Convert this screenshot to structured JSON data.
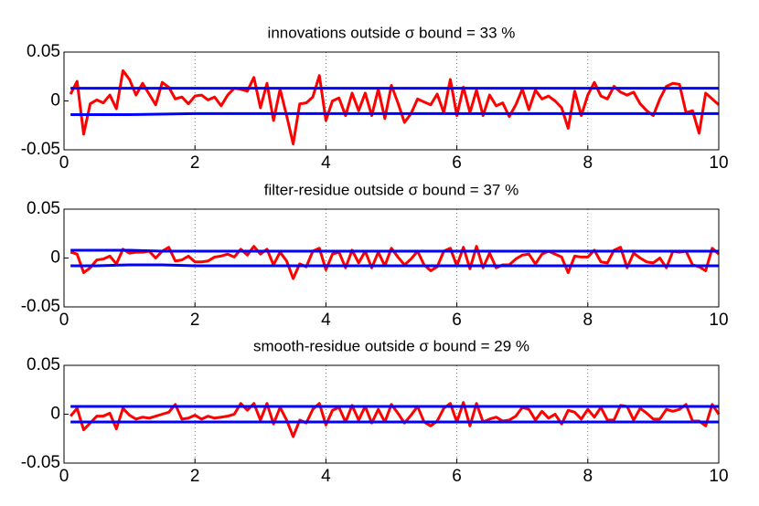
{
  "chart_data": [
    {
      "type": "line",
      "title": "innovations outside σ bound = 33 %",
      "x": [
        0.1,
        0.2,
        0.3,
        0.4,
        0.5,
        0.6,
        0.7,
        0.8,
        0.9,
        1.0,
        1.1,
        1.2,
        1.3,
        1.4,
        1.5,
        1.6,
        1.7,
        1.8,
        1.9,
        2.0,
        2.1,
        2.2,
        2.3,
        2.4,
        2.5,
        2.6,
        2.7,
        2.8,
        2.9,
        3.0,
        3.1,
        3.2,
        3.3,
        3.4,
        3.5,
        3.6,
        3.7,
        3.8,
        3.9,
        4.0,
        4.1,
        4.2,
        4.3,
        4.4,
        4.5,
        4.6,
        4.7,
        4.8,
        4.9,
        5.0,
        5.1,
        5.2,
        5.3,
        5.4,
        5.5,
        5.6,
        5.7,
        5.8,
        5.9,
        6.0,
        6.1,
        6.2,
        6.3,
        6.4,
        6.5,
        6.6,
        6.7,
        6.8,
        6.9,
        7.0,
        7.1,
        7.2,
        7.3,
        7.4,
        7.5,
        7.6,
        7.7,
        7.8,
        7.9,
        8.0,
        8.1,
        8.2,
        8.3,
        8.4,
        8.5,
        8.6,
        8.7,
        8.8,
        8.9,
        9.0,
        9.1,
        9.2,
        9.3,
        9.4,
        9.5,
        9.6,
        9.7,
        9.8,
        9.9,
        10.0
      ],
      "series": [
        {
          "color": "#ff0000",
          "values": [
            0.007,
            0.02,
            -0.034,
            -0.003,
            0.001,
            -0.002,
            0.006,
            -0.008,
            0.031,
            0.022,
            0.006,
            0.018,
            0.007,
            -0.004,
            0.019,
            0.014,
            0.002,
            0.004,
            -0.003,
            0.005,
            0.006,
            0.001,
            0.004,
            -0.005,
            0.006,
            0.013,
            0.012,
            0.01,
            0.024,
            -0.007,
            0.018,
            -0.02,
            0.012,
            -0.015,
            -0.044,
            -0.003,
            -0.002,
            0.004,
            0.026,
            -0.02,
            0.0,
            0.003,
            -0.015,
            0.008,
            -0.01,
            0.008,
            -0.015,
            0.012,
            -0.018,
            0.016,
            -0.002,
            -0.022,
            -0.013,
            0.002,
            -0.001,
            -0.004,
            0.007,
            -0.012,
            0.022,
            -0.015,
            0.014,
            -0.012,
            0.011,
            -0.015,
            0.006,
            -0.005,
            -0.002,
            -0.016,
            -0.004,
            0.012,
            -0.009,
            0.011,
            0.002,
            0.005,
            0.0,
            -0.007,
            -0.028,
            0.01,
            -0.015,
            0.006,
            0.019,
            0.005,
            0.002,
            0.015,
            0.009,
            0.006,
            0.009,
            -0.003,
            -0.01,
            -0.015,
            0.002,
            0.015,
            0.018,
            0.017,
            -0.012,
            -0.01,
            -0.033,
            0.008,
            0.002,
            -0.004
          ]
        },
        {
          "color": "#0000ff",
          "x": [
            0.1,
            1,
            2,
            3,
            4,
            5,
            6,
            7,
            8,
            9,
            10
          ],
          "values": [
            0.013,
            0.013,
            0.013,
            0.013,
            0.013,
            0.013,
            0.013,
            0.013,
            0.013,
            0.013,
            0.013
          ]
        },
        {
          "color": "#0000ff",
          "x": [
            0.1,
            1,
            2,
            3,
            4,
            5,
            6,
            7,
            8,
            9,
            10
          ],
          "values": [
            -0.014,
            -0.014,
            -0.013,
            -0.013,
            -0.013,
            -0.013,
            -0.013,
            -0.013,
            -0.013,
            -0.013,
            -0.013
          ]
        }
      ],
      "xlim": [
        0,
        10
      ],
      "xticks": [
        0,
        2,
        4,
        6,
        8,
        10
      ],
      "ylim": [
        -0.05,
        0.05
      ],
      "yticks": [
        -0.05,
        0,
        0.05
      ],
      "grid": "x"
    },
    {
      "type": "line",
      "title": "filter-residue outside σ bound = 37 %",
      "x": [
        0.1,
        0.2,
        0.3,
        0.4,
        0.5,
        0.6,
        0.7,
        0.8,
        0.9,
        1.0,
        1.1,
        1.2,
        1.3,
        1.4,
        1.5,
        1.6,
        1.7,
        1.8,
        1.9,
        2.0,
        2.1,
        2.2,
        2.3,
        2.4,
        2.5,
        2.6,
        2.7,
        2.8,
        2.9,
        3.0,
        3.1,
        3.2,
        3.3,
        3.4,
        3.5,
        3.6,
        3.7,
        3.8,
        3.9,
        4.0,
        4.1,
        4.2,
        4.3,
        4.4,
        4.5,
        4.6,
        4.7,
        4.8,
        4.9,
        5.0,
        5.1,
        5.2,
        5.3,
        5.4,
        5.5,
        5.6,
        5.7,
        5.8,
        5.9,
        6.0,
        6.1,
        6.2,
        6.3,
        6.4,
        6.5,
        6.6,
        6.7,
        6.8,
        6.9,
        7.0,
        7.1,
        7.2,
        7.3,
        7.4,
        7.5,
        7.6,
        7.7,
        7.8,
        7.9,
        8.0,
        8.1,
        8.2,
        8.3,
        8.4,
        8.5,
        8.6,
        8.7,
        8.8,
        8.9,
        9.0,
        9.1,
        9.2,
        9.3,
        9.4,
        9.5,
        9.6,
        9.7,
        9.8,
        9.9,
        10.0
      ],
      "series": [
        {
          "color": "#ff0000",
          "values": [
            0.006,
            0.004,
            -0.015,
            -0.01,
            -0.002,
            -0.001,
            0.002,
            -0.006,
            0.009,
            0.005,
            0.006,
            0.006,
            0.007,
            0.0,
            0.007,
            0.011,
            -0.003,
            -0.002,
            0.002,
            -0.004,
            -0.004,
            -0.003,
            0.001,
            0.002,
            0.004,
            0.001,
            0.009,
            0.003,
            0.012,
            0.004,
            0.009,
            -0.007,
            0.006,
            -0.003,
            -0.021,
            -0.006,
            -0.009,
            0.007,
            0.01,
            -0.012,
            0.004,
            0.006,
            -0.01,
            0.008,
            -0.005,
            0.007,
            -0.01,
            0.006,
            -0.008,
            0.01,
            0.001,
            -0.007,
            -0.001,
            0.007,
            -0.007,
            -0.013,
            -0.009,
            0.007,
            0.01,
            -0.008,
            0.011,
            -0.011,
            0.012,
            -0.01,
            0.005,
            -0.01,
            -0.007,
            -0.007,
            -0.001,
            0.003,
            0.004,
            -0.006,
            0.004,
            0.007,
            0.004,
            0.001,
            -0.015,
            0.002,
            0.001,
            0.001,
            0.008,
            -0.004,
            -0.005,
            0.008,
            0.011,
            -0.01,
            0.005,
            0.0,
            -0.004,
            -0.005,
            0.0,
            -0.01,
            0.007,
            0.006,
            0.007,
            -0.007,
            -0.009,
            -0.013,
            0.01,
            0.004
          ]
        },
        {
          "color": "#0000ff",
          "x": [
            0.1,
            0.5,
            1,
            1.5,
            2,
            3,
            4,
            5,
            6,
            7,
            8,
            9,
            10
          ],
          "values": [
            0.008,
            0.008,
            0.008,
            0.007,
            0.007,
            0.007,
            0.007,
            0.007,
            0.007,
            0.007,
            0.007,
            0.007,
            0.007
          ]
        },
        {
          "color": "#0000ff",
          "x": [
            0.1,
            0.5,
            1,
            1.5,
            2,
            3,
            4,
            5,
            6,
            7,
            8,
            9,
            10
          ],
          "values": [
            -0.008,
            -0.008,
            -0.007,
            -0.007,
            -0.008,
            -0.008,
            -0.008,
            -0.008,
            -0.008,
            -0.008,
            -0.008,
            -0.008,
            -0.008
          ]
        }
      ],
      "xlim": [
        0,
        10
      ],
      "xticks": [
        0,
        2,
        4,
        6,
        8,
        10
      ],
      "ylim": [
        -0.05,
        0.05
      ],
      "yticks": [
        -0.05,
        0,
        0.05
      ],
      "grid": "x"
    },
    {
      "type": "line",
      "title": "smooth-residue outside σ bound = 29 %",
      "x": [
        0.1,
        0.2,
        0.3,
        0.4,
        0.5,
        0.6,
        0.7,
        0.8,
        0.9,
        1.0,
        1.1,
        1.2,
        1.3,
        1.4,
        1.5,
        1.6,
        1.7,
        1.8,
        1.9,
        2.0,
        2.1,
        2.2,
        2.3,
        2.4,
        2.5,
        2.6,
        2.7,
        2.8,
        2.9,
        3.0,
        3.1,
        3.2,
        3.3,
        3.4,
        3.5,
        3.6,
        3.7,
        3.8,
        3.9,
        4.0,
        4.1,
        4.2,
        4.3,
        4.4,
        4.5,
        4.6,
        4.7,
        4.8,
        4.9,
        5.0,
        5.1,
        5.2,
        5.3,
        5.4,
        5.5,
        5.6,
        5.7,
        5.8,
        5.9,
        6.0,
        6.1,
        6.2,
        6.3,
        6.4,
        6.5,
        6.6,
        6.7,
        6.8,
        6.9,
        7.0,
        7.1,
        7.2,
        7.3,
        7.4,
        7.5,
        7.6,
        7.7,
        7.8,
        7.9,
        8.0,
        8.1,
        8.2,
        8.3,
        8.4,
        8.5,
        8.6,
        8.7,
        8.8,
        8.9,
        9.0,
        9.1,
        9.2,
        9.3,
        9.4,
        9.5,
        9.6,
        9.7,
        9.8,
        9.9,
        10.0
      ],
      "series": [
        {
          "color": "#ff0000",
          "values": [
            -0.002,
            0.006,
            -0.016,
            -0.009,
            -0.002,
            -0.002,
            0.001,
            -0.015,
            0.006,
            -0.001,
            -0.005,
            -0.003,
            -0.004,
            -0.002,
            0.0,
            0.002,
            0.01,
            -0.005,
            -0.004,
            -0.001,
            -0.005,
            -0.002,
            -0.004,
            -0.003,
            -0.002,
            0.0,
            0.011,
            0.004,
            0.011,
            -0.006,
            0.011,
            -0.01,
            0.007,
            -0.006,
            -0.023,
            -0.006,
            -0.009,
            0.005,
            0.011,
            -0.011,
            0.004,
            0.007,
            -0.008,
            0.009,
            -0.006,
            0.008,
            -0.009,
            0.005,
            -0.008,
            0.01,
            0.001,
            -0.009,
            -0.001,
            0.008,
            -0.008,
            -0.012,
            -0.007,
            0.006,
            0.011,
            -0.008,
            0.012,
            -0.012,
            0.011,
            -0.008,
            -0.005,
            -0.003,
            -0.007,
            -0.006,
            -0.002,
            0.007,
            0.005,
            -0.006,
            0.003,
            -0.004,
            0.0,
            -0.01,
            0.004,
            0.002,
            -0.005,
            0.005,
            -0.003,
            0.007,
            -0.006,
            -0.006,
            0.009,
            0.008,
            -0.006,
            0.006,
            0.001,
            -0.005,
            -0.005,
            0.005,
            0.003,
            0.005,
            0.01,
            -0.007,
            -0.007,
            -0.012,
            0.01,
            0.0
          ]
        },
        {
          "color": "#0000ff",
          "x": [
            0.1,
            1,
            2,
            3,
            4,
            5,
            6,
            7,
            8,
            9,
            10
          ],
          "values": [
            0.008,
            0.008,
            0.008,
            0.008,
            0.008,
            0.008,
            0.008,
            0.008,
            0.008,
            0.008,
            0.008
          ]
        },
        {
          "color": "#0000ff",
          "x": [
            0.1,
            1,
            2,
            3,
            4,
            5,
            6,
            7,
            8,
            9,
            10
          ],
          "values": [
            -0.008,
            -0.008,
            -0.008,
            -0.008,
            -0.008,
            -0.008,
            -0.008,
            -0.008,
            -0.008,
            -0.008,
            -0.008
          ]
        }
      ],
      "xlim": [
        0,
        10
      ],
      "xticks": [
        0,
        2,
        4,
        6,
        8,
        10
      ],
      "ylim": [
        -0.05,
        0.05
      ],
      "yticks": [
        -0.05,
        0,
        0.05
      ],
      "grid": "x"
    }
  ]
}
